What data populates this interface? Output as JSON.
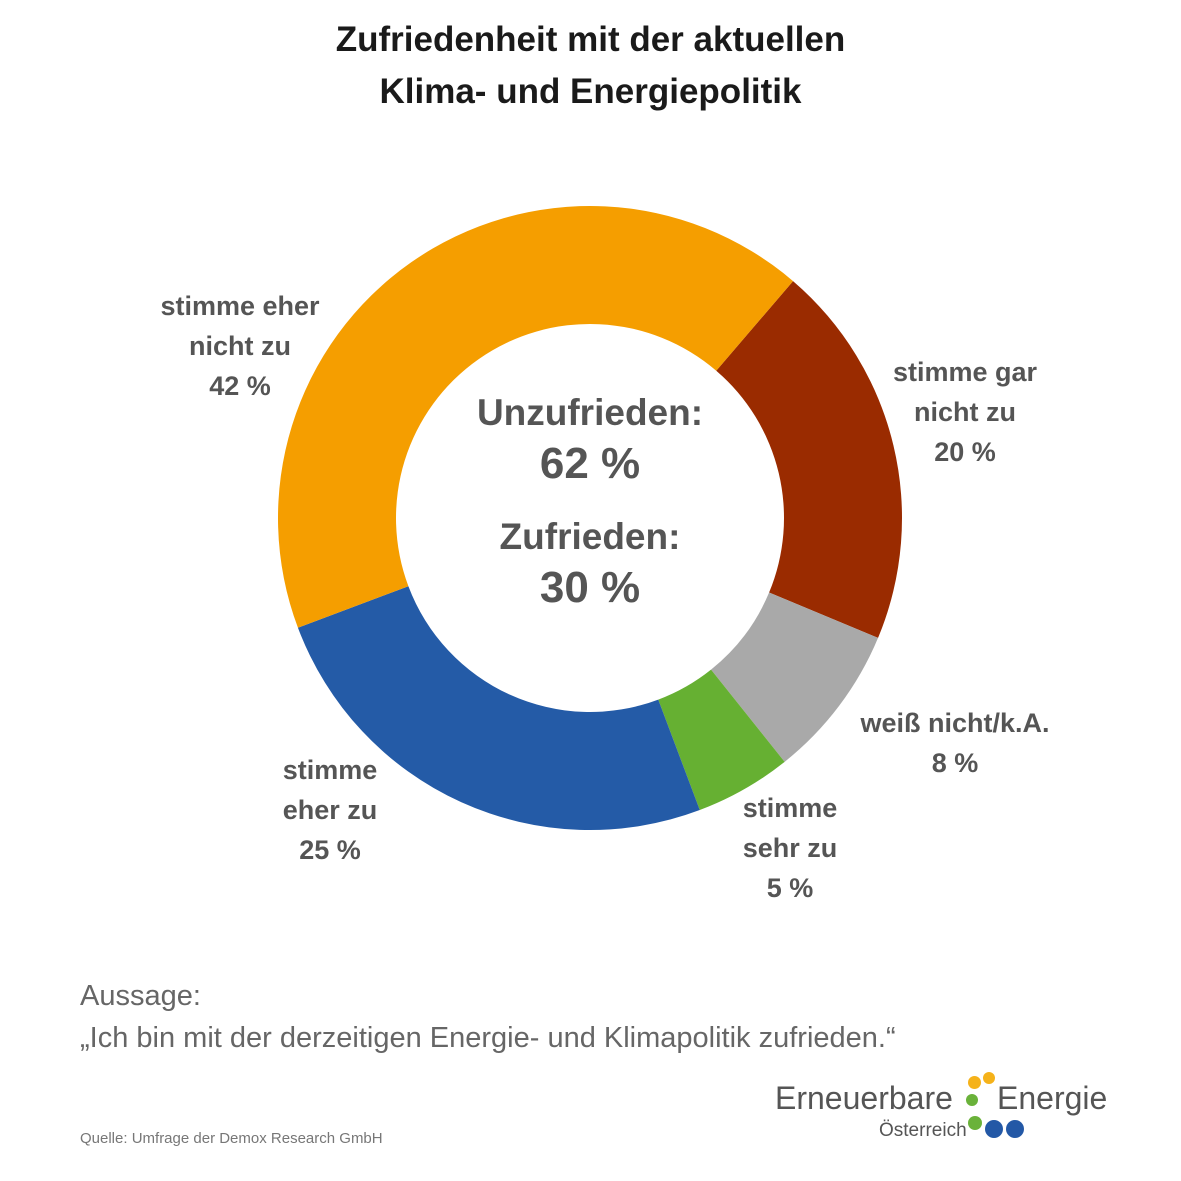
{
  "title_lines": [
    "Zufriedenheit mit der aktuellen",
    "Klima- und Energiepolitik"
  ],
  "center": {
    "unzufrieden_label": "Unzufrieden:",
    "unzufrieden_value": "62 %",
    "zufrieden_label": "Zufrieden:",
    "zufrieden_value": "30 %"
  },
  "statement": {
    "label": "Aussage:",
    "quote": "„Ich bin mit der derzeitigen Energie- und Klimapolitik zufrieden.“"
  },
  "source": "Quelle: Umfrage der Demox Research GmbH",
  "logo": {
    "word1": "Erneuerbare",
    "word2": "Energie",
    "word3": "Österreich",
    "colors": {
      "yellow": "#F5B21A",
      "green": "#6AB23A",
      "blue": "#2358A6"
    }
  },
  "chart_data": {
    "type": "pie",
    "donut": true,
    "title": "Zufriedenheit mit der aktuellen Klima- und Energiepolitik",
    "start_angle_deg": 40.6,
    "slices": [
      {
        "label": "stimme gar nicht zu",
        "value": 20,
        "display": "20 %",
        "color": "#9A2B00",
        "label_lines": [
          "stimme gar",
          "nicht zu",
          "20 %"
        ]
      },
      {
        "label": "weiß nicht/k.A.",
        "value": 8,
        "display": "8 %",
        "color": "#A9A9A9",
        "label_lines": [
          "weiß nicht/k.A.",
          "8 %"
        ]
      },
      {
        "label": "stimme sehr zu",
        "value": 5,
        "display": "5 %",
        "color": "#66B032",
        "label_lines": [
          "stimme",
          "sehr zu",
          "5 %"
        ]
      },
      {
        "label": "stimme eher zu",
        "value": 25,
        "display": "25 %",
        "color": "#245BA7",
        "label_lines": [
          "stimme",
          "eher zu",
          "25 %"
        ]
      },
      {
        "label": "stimme eher nicht zu",
        "value": 42,
        "display": "42 %",
        "color": "#F59E00",
        "label_lines": [
          "stimme eher",
          "nicht zu",
          "42 %"
        ]
      }
    ]
  }
}
